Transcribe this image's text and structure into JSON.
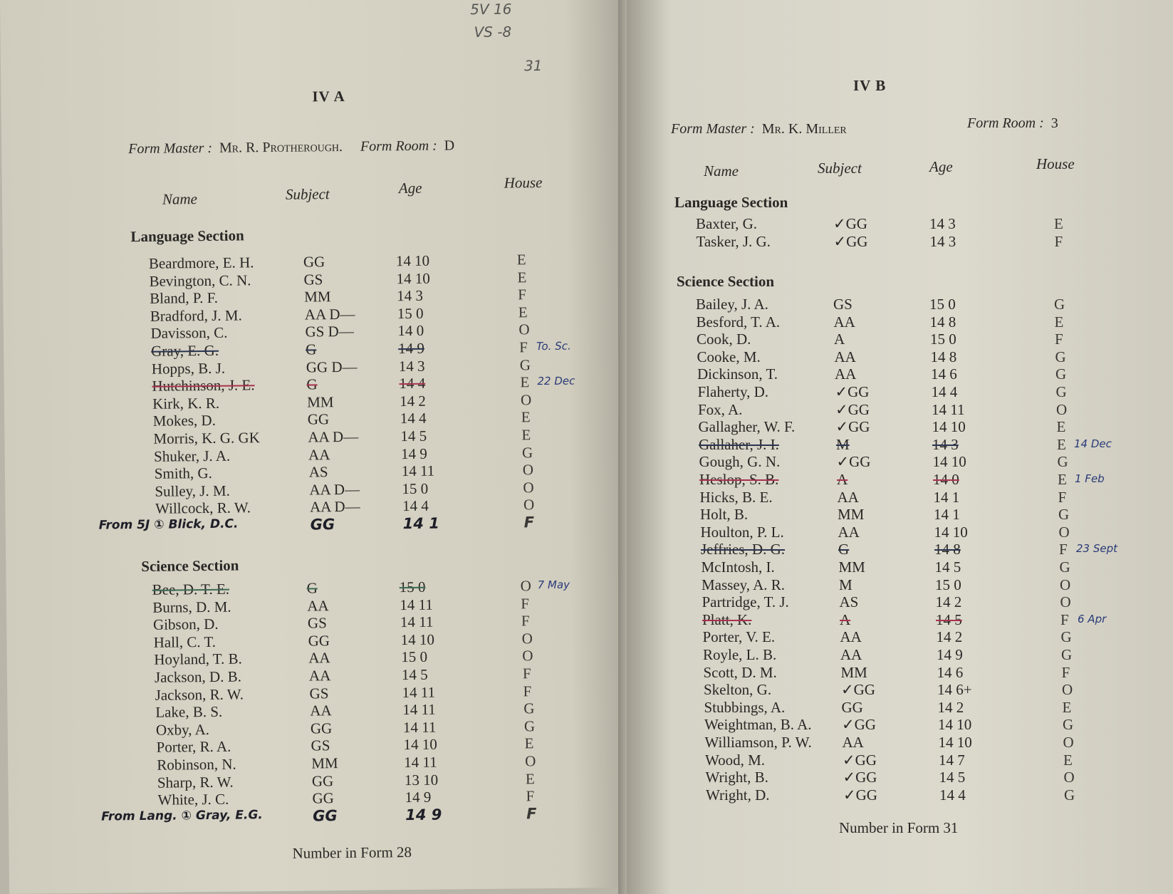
{
  "margin_notes": [
    "5V 16",
    "VS -8",
    "31"
  ],
  "colors": {
    "paper": "#d8d4c6",
    "ink": "#2a2826",
    "red_strike": "#a8344e",
    "blue_note": "#283a78"
  },
  "left_page": {
    "title": "IV A",
    "form_master_label": "Form Master :",
    "form_master": "Mr. R. Protherough.",
    "form_room_label": "Form Room :",
    "form_room": "D",
    "headers": {
      "name": "Name",
      "subject": "Subject",
      "age": "Age",
      "house": "House"
    },
    "sections": [
      {
        "title": "Language Section",
        "rows": [
          {
            "name": "Beardmore, E. H.",
            "subject": "GG",
            "age": "14 10",
            "house": "E"
          },
          {
            "name": "Bevington, C. N.",
            "subject": "GS",
            "age": "14 10",
            "house": "E"
          },
          {
            "name": "Bland, P. F.",
            "subject": "MM",
            "age": "14  3",
            "house": "F"
          },
          {
            "name": "Bradford, J. M.",
            "subject": "AA D—",
            "age": "15  0",
            "house": "E"
          },
          {
            "name": "Davisson, C.",
            "subject": "GS D—",
            "age": "14  0",
            "house": "O"
          },
          {
            "name": "Gray, E. G.",
            "subject": "G",
            "age": "14  9",
            "house": "F",
            "struck": "dark",
            "note": "To. Sc."
          },
          {
            "name": "Hopps, B. J.",
            "subject": "GG D—",
            "age": "14  3",
            "house": "G"
          },
          {
            "name": "Hutchinson, J. E.",
            "subject": "G",
            "age": "14  4",
            "house": "E",
            "struck": "red",
            "note": "22 Dec"
          },
          {
            "name": "Kirk, K. R.",
            "subject": "MM",
            "age": "14  2",
            "house": "O"
          },
          {
            "name": "Mokes, D.",
            "subject": "GG",
            "age": "14  4",
            "house": "E"
          },
          {
            "name": "Morris, K. G. GK",
            "subject": "AA D—",
            "age": "14  5",
            "house": "E"
          },
          {
            "name": "Shuker, J. A.",
            "subject": "AA",
            "age": "14  9",
            "house": "G"
          },
          {
            "name": "Smith, G.",
            "subject": "AS",
            "age": "14 11",
            "house": "O"
          },
          {
            "name": "Sulley, J. M.",
            "subject": "AA D—",
            "age": "15  0",
            "house": "O"
          },
          {
            "name": "Willcock, R. W.",
            "subject": "AA D—",
            "age": "14  4",
            "house": "O"
          },
          {
            "name": "From 5J ① Blick, D.C.",
            "subject": "GG",
            "age": "14  1",
            "house": "F",
            "added": true
          }
        ]
      },
      {
        "title": "Science Section",
        "rows": [
          {
            "name": "Bee, D. T. E.",
            "subject": "G",
            "age": "15  0",
            "house": "O",
            "struck": "green",
            "note": "7 May"
          },
          {
            "name": "Burns, D. M.",
            "subject": "AA",
            "age": "14 11",
            "house": "F"
          },
          {
            "name": "Gibson, D.",
            "subject": "GS",
            "age": "14 11",
            "house": "F"
          },
          {
            "name": "Hall, C. T.",
            "subject": "GG",
            "age": "14 10",
            "house": "O"
          },
          {
            "name": "Hoyland, T. B.",
            "subject": "AA",
            "age": "15  0",
            "house": "O"
          },
          {
            "name": "Jackson, D. B.",
            "subject": "AA",
            "age": "14  5",
            "house": "F"
          },
          {
            "name": "Jackson, R. W.",
            "subject": "GS",
            "age": "14 11",
            "house": "F"
          },
          {
            "name": "Lake, B. S.",
            "subject": "AA",
            "age": "14 11",
            "house": "G"
          },
          {
            "name": "Oxby, A.",
            "subject": "GG",
            "age": "14 11",
            "house": "G"
          },
          {
            "name": "Porter, R. A.",
            "subject": "GS",
            "age": "14 10",
            "house": "E"
          },
          {
            "name": "Robinson, N.",
            "subject": "MM",
            "age": "14 11",
            "house": "O"
          },
          {
            "name": "Sharp, R. W.",
            "subject": "GG",
            "age": "13 10",
            "house": "E"
          },
          {
            "name": "White, J. C.",
            "subject": "GG",
            "age": "14  9",
            "house": "F"
          },
          {
            "name": "From Lang. ① Gray, E.G.",
            "subject": "GG",
            "age": "14  9",
            "house": "F",
            "added": true
          }
        ]
      }
    ],
    "total": "Number in Form 28"
  },
  "right_page": {
    "title": "IV B",
    "form_master_label": "Form Master :",
    "form_master": "Mr. K. Miller",
    "form_room_label": "Form Room :",
    "form_room": "3",
    "headers": {
      "name": "Name",
      "subject": "Subject",
      "age": "Age",
      "house": "House"
    },
    "sections": [
      {
        "title": "Language Section",
        "rows": [
          {
            "name": "Baxter, G.",
            "subject": "✓GG",
            "age": "14  3",
            "house": "E"
          },
          {
            "name": "Tasker, J. G.",
            "subject": "✓GG",
            "age": "14  3",
            "house": "F"
          }
        ]
      },
      {
        "title": "Science Section",
        "rows": [
          {
            "name": "Bailey, J. A.",
            "subject": "GS",
            "age": "15  0",
            "house": "G"
          },
          {
            "name": "Besford, T. A.",
            "subject": "AA",
            "age": "14  8",
            "house": "E"
          },
          {
            "name": "Cook, D.",
            "subject": "A",
            "age": "15  0",
            "house": "F"
          },
          {
            "name": "Cooke, M.",
            "subject": "AA",
            "age": "14  8",
            "house": "G"
          },
          {
            "name": "Dickinson, T.",
            "subject": "AA",
            "age": "14  6",
            "house": "G"
          },
          {
            "name": "Flaherty, D.",
            "subject": "✓GG",
            "age": "14  4",
            "house": "G"
          },
          {
            "name": "Fox, A.",
            "subject": "✓GG",
            "age": "14 11",
            "house": "O"
          },
          {
            "name": "Gallagher, W. F.",
            "subject": "✓GG",
            "age": "14 10",
            "house": "E"
          },
          {
            "name": "Gallaher, J. I.",
            "subject": "M",
            "age": "14  3",
            "house": "E",
            "struck": "dark",
            "note": "14 Dec"
          },
          {
            "name": "Gough, G. N.",
            "subject": "✓GG",
            "age": "14 10",
            "house": "G"
          },
          {
            "name": "Heslop, S. B.",
            "subject": "A",
            "age": "14  0",
            "house": "E",
            "struck": "red",
            "note": "1 Feb"
          },
          {
            "name": "Hicks, B. E.",
            "subject": "AA",
            "age": "14  1",
            "house": "F"
          },
          {
            "name": "Holt, B.",
            "subject": "MM",
            "age": "14  1",
            "house": "G"
          },
          {
            "name": "Houlton, P. L.",
            "subject": "AA",
            "age": "14 10",
            "house": "O"
          },
          {
            "name": "Jeffries, D. G.",
            "subject": "G",
            "age": "14  8",
            "house": "F",
            "struck": "dark",
            "note": "23 Sept"
          },
          {
            "name": "McIntosh, I.",
            "subject": "MM",
            "age": "14  5",
            "house": "G"
          },
          {
            "name": "Massey, A. R.",
            "subject": "M",
            "age": "15  0",
            "house": "O"
          },
          {
            "name": "Partridge, T. J.",
            "subject": "AS",
            "age": "14  2",
            "house": "O"
          },
          {
            "name": "Platt, K.",
            "subject": "A",
            "age": "14  5",
            "house": "F",
            "struck": "red",
            "note": "6 Apr"
          },
          {
            "name": "Porter, V. E.",
            "subject": "AA",
            "age": "14  2",
            "house": "G"
          },
          {
            "name": "Royle, L. B.",
            "subject": "AA",
            "age": "14  9",
            "house": "G"
          },
          {
            "name": "Scott, D. M.",
            "subject": "MM",
            "age": "14  6",
            "house": "F"
          },
          {
            "name": "Skelton, G.",
            "subject": "✓GG",
            "age": "14  6+",
            "house": "O"
          },
          {
            "name": "Stubbings, A.",
            "subject": "GG",
            "age": "14  2",
            "house": "E"
          },
          {
            "name": "Weightman, B. A.",
            "subject": "✓GG",
            "age": "14 10",
            "house": "G"
          },
          {
            "name": "Williamson, P. W.",
            "subject": "AA",
            "age": "14 10",
            "house": "O"
          },
          {
            "name": "Wood, M.",
            "subject": "✓GG",
            "age": "14  7",
            "house": "E"
          },
          {
            "name": "Wright, B.",
            "subject": "✓GG",
            "age": "14  5",
            "house": "O"
          },
          {
            "name": "Wright, D.",
            "subject": "✓GG",
            "age": "14  4",
            "house": "G"
          }
        ]
      }
    ],
    "total": "Number in Form 31"
  }
}
